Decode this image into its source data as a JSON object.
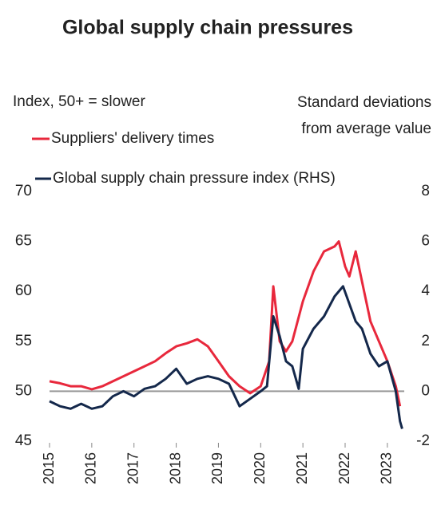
{
  "chart_data": {
    "type": "line",
    "title": "Global supply chain pressures",
    "ylabel": "Index, 50+ = slower",
    "y2label": "Standard deviations from average value",
    "xlim": [
      2015,
      2023.4
    ],
    "xticks": [
      2015,
      2016,
      2017,
      2018,
      2019,
      2020,
      2021,
      2022,
      2023
    ],
    "ylim": [
      45,
      70
    ],
    "yticks": [
      45,
      50,
      55,
      60,
      65,
      70
    ],
    "y2lim": [
      -2,
      8
    ],
    "y2ticks": [
      -2,
      0,
      2,
      4,
      6,
      8
    ],
    "reference_line": 50,
    "series": [
      {
        "name": "Suppliers' delivery times",
        "color": "#e8283c",
        "axis": "y",
        "x": [
          2015.0,
          2015.25,
          2015.5,
          2015.75,
          2016.0,
          2016.25,
          2016.5,
          2016.75,
          2017.0,
          2017.25,
          2017.5,
          2017.75,
          2018.0,
          2018.25,
          2018.5,
          2018.75,
          2019.0,
          2019.25,
          2019.5,
          2019.75,
          2020.0,
          2020.2,
          2020.3,
          2020.45,
          2020.6,
          2020.75,
          2021.0,
          2021.25,
          2021.5,
          2021.75,
          2021.85,
          2022.0,
          2022.1,
          2022.25,
          2022.4,
          2022.6,
          2022.8,
          2023.0,
          2023.2,
          2023.3
        ],
        "values": [
          51,
          50.8,
          50.5,
          50.5,
          50.2,
          50.5,
          51,
          51.5,
          52,
          52.5,
          53,
          53.8,
          54.5,
          54.8,
          55.2,
          54.5,
          53,
          51.5,
          50.5,
          49.8,
          50.5,
          53,
          60.5,
          55,
          54,
          55,
          59,
          62,
          64,
          64.5,
          65,
          62.5,
          61.5,
          64,
          61,
          57,
          55,
          53,
          50.5,
          48.5
        ]
      },
      {
        "name": "Global supply chain pressure index (RHS)",
        "color": "#14284b",
        "axis": "y2",
        "x": [
          2015.0,
          2015.25,
          2015.5,
          2015.75,
          2016.0,
          2016.25,
          2016.5,
          2016.75,
          2017.0,
          2017.25,
          2017.5,
          2017.75,
          2018.0,
          2018.25,
          2018.5,
          2018.75,
          2019.0,
          2019.25,
          2019.5,
          2019.75,
          2020.0,
          2020.15,
          2020.3,
          2020.45,
          2020.6,
          2020.75,
          2020.9,
          2021.0,
          2021.25,
          2021.5,
          2021.75,
          2021.95,
          2022.1,
          2022.25,
          2022.4,
          2022.6,
          2022.8,
          2023.0,
          2023.2,
          2023.3,
          2023.35
        ],
        "values": [
          -0.4,
          -0.6,
          -0.7,
          -0.5,
          -0.7,
          -0.6,
          -0.2,
          0,
          -0.2,
          0.1,
          0.2,
          0.5,
          0.9,
          0.3,
          0.5,
          0.6,
          0.5,
          0.3,
          -0.6,
          -0.3,
          0,
          0.2,
          3.0,
          2.2,
          1.2,
          1.0,
          0.1,
          1.7,
          2.5,
          3.0,
          3.8,
          4.2,
          3.5,
          2.8,
          2.5,
          1.5,
          1.0,
          1.2,
          0,
          -1.2,
          -1.5
        ]
      }
    ]
  }
}
